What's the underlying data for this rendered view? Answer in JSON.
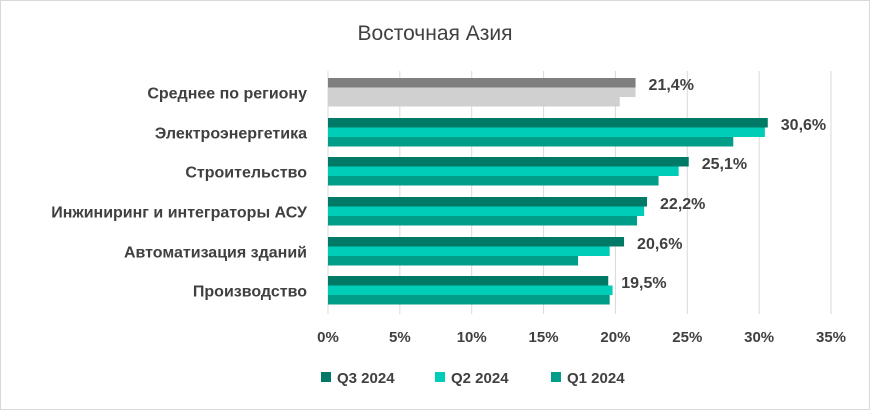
{
  "chart_data": {
    "type": "bar",
    "orientation": "horizontal",
    "title": "Восточная Азия",
    "categories": [
      "Среднее по региону",
      "Электроэнергетика",
      "Строительство",
      "Инжиниринг и интеграторы АСУ",
      "Автоматизация зданий",
      "Производство"
    ],
    "series": [
      {
        "name": "Q3 2024",
        "color": "#007a66",
        "average_color": "#7f7f7f",
        "values": [
          21.4,
          30.6,
          25.1,
          22.2,
          20.6,
          19.5
        ]
      },
      {
        "name": "Q2 2024",
        "color": "#00cdb8",
        "average_color": "#d0d0d0",
        "values": [
          21.4,
          30.4,
          24.4,
          22.0,
          19.6,
          19.8
        ]
      },
      {
        "name": "Q1 2024",
        "color": "#009e89",
        "average_color": "#d0d0d0",
        "values": [
          20.3,
          28.2,
          23.0,
          21.5,
          17.4,
          19.6
        ]
      }
    ],
    "data_labels": [
      "21,4%",
      "30,6%",
      "25,1%",
      "22,2%",
      "20,6%",
      "19,5%"
    ],
    "xlim": [
      0,
      35
    ],
    "xticks": [
      "0%",
      "5%",
      "10%",
      "15%",
      "20%",
      "25%",
      "30%",
      "35%"
    ],
    "grid": "vertical",
    "legend_position": "bottom",
    "xlabel": "",
    "ylabel": ""
  }
}
